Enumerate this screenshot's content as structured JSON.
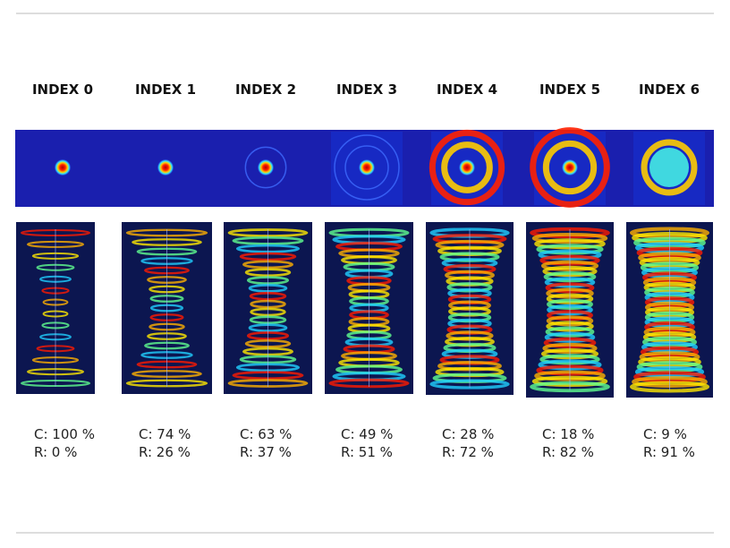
{
  "columns": [
    {
      "header": "INDEX 0",
      "c": "C: 100 %",
      "r": "R: 0 %"
    },
    {
      "header": "INDEX 1",
      "c": "C: 74 %",
      "r": "R: 26 %"
    },
    {
      "header": "INDEX 2",
      "c": "C: 63 %",
      "r": "R: 37 %"
    },
    {
      "header": "INDEX 3",
      "c": "C: 49 %",
      "r": "R: 51 %"
    },
    {
      "header": "INDEX 4",
      "c": "C: 28 %",
      "r": "R: 72 %"
    },
    {
      "header": "INDEX 5",
      "c": "C: 18 %",
      "r": "R: 82 %"
    },
    {
      "header": "INDEX 6",
      "c": "C: 9 %",
      "r": "R: 91 %"
    }
  ]
}
